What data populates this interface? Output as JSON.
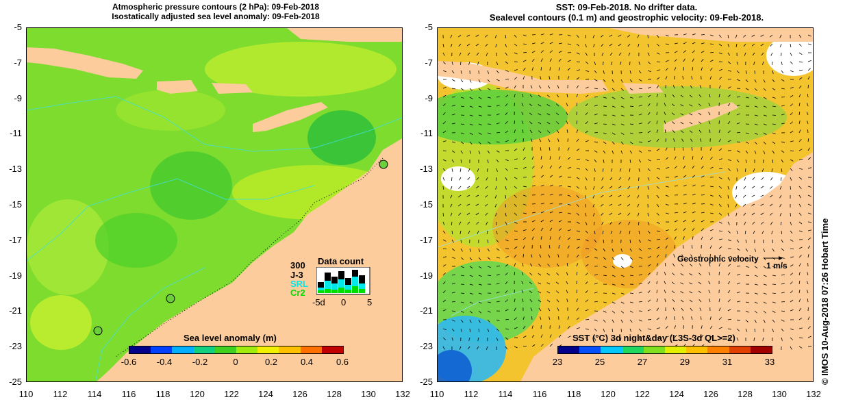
{
  "left_panel": {
    "title_line1": "Atmospheric pressure contours (2 hPa): 09-Feb-2018",
    "title_line2": "Isostatically adjusted sea level anomaly: 09-Feb-2018",
    "colorbar": {
      "title": "Sea level anomaly (m)",
      "labels": [
        "-0.6",
        "-0.4",
        "-0.2",
        "0",
        "0.2",
        "0.4",
        "0.6"
      ],
      "colors": [
        "#00008a",
        "#0040ff",
        "#00b0ff",
        "#10d080",
        "#40d020",
        "#a0ec10",
        "#f0f000",
        "#ffc000",
        "#ff7000",
        "#c00000"
      ]
    },
    "data_count": {
      "title": "Data count",
      "max_label": "300",
      "series": [
        {
          "name": "J-3",
          "color": "#000000"
        },
        {
          "name": "SRL",
          "color": "#00ffff"
        },
        {
          "name": "Cr2",
          "color": "#00ff00"
        }
      ],
      "x_labels": [
        "-5d",
        "0",
        "5"
      ]
    }
  },
  "right_panel": {
    "title_line1": "SST: 09-Feb-2018. No drifter data.",
    "title_line2": "Sealevel contours (0.1 m) and geostrophic velocity: 09-Feb-2018.",
    "velocity_label": "Geostrophic velocity",
    "velocity_scale": "1 m/s",
    "colorbar": {
      "title": "SST (°C) 3d night&day (L3S-3d QL>=2)",
      "labels": [
        "23",
        "25",
        "27",
        "29",
        "31",
        "33"
      ],
      "colors": [
        "#00008a",
        "#0050ff",
        "#00c8ff",
        "#20d860",
        "#80e020",
        "#e0f000",
        "#ffc000",
        "#ff8000",
        "#e04000",
        "#a00000"
      ]
    }
  },
  "axes": {
    "y_labels": [
      "-5",
      "-7",
      "-9",
      "-11",
      "-13",
      "-15",
      "-17",
      "-19",
      "-21",
      "-23",
      "-25"
    ],
    "x_labels": [
      "110",
      "112",
      "114",
      "116",
      "118",
      "120",
      "122",
      "124",
      "126",
      "128",
      "130",
      "132"
    ]
  },
  "credit": "© IMOS 10-Aug-2018 07:26 Hobart Time",
  "colors": {
    "land": "#fccc9c",
    "sla_sea": "#66dd33",
    "sst_sea": "#f6c431"
  }
}
